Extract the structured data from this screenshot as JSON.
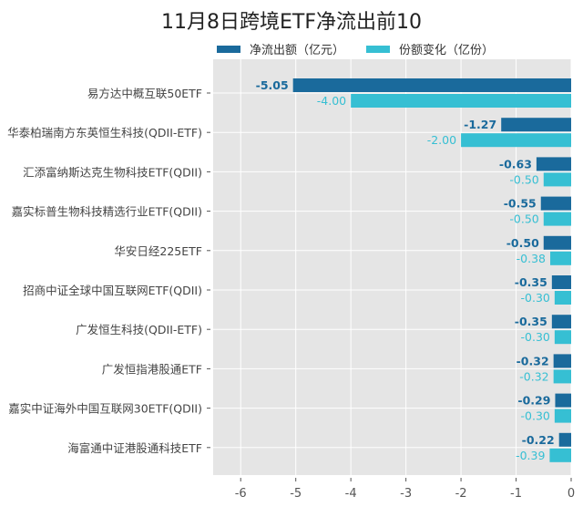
{
  "chart_data": {
    "type": "bar",
    "orientation": "horizontal",
    "title": "11月8日跨境ETF净流出前10",
    "categories": [
      "易方达中概互联50ETF",
      "华泰柏瑞南方东英恒生科技(QDII-ETF)",
      "汇添富纳斯达克生物科技ETF(QDII)",
      "嘉实标普生物科技精选行业ETF(QDII)",
      "华安日经225ETF",
      "招商中证全球中国互联网ETF(QDII)",
      "广发恒生科技(QDII-ETF)",
      "广发恒指港股通ETF",
      "嘉实中证海外中国互联网30ETF(QDII)",
      "海富通中证港股通科技ETF"
    ],
    "series": [
      {
        "name": "净流出额（亿元）",
        "color": "#1a6a9c",
        "values": [
          -5.05,
          -1.27,
          -0.63,
          -0.55,
          -0.5,
          -0.35,
          -0.35,
          -0.32,
          -0.29,
          -0.22
        ]
      },
      {
        "name": "份额变化（亿份）",
        "color": "#36bfd3",
        "values": [
          -4.0,
          -2.0,
          -0.5,
          -0.5,
          -0.38,
          -0.3,
          -0.3,
          -0.32,
          -0.3,
          -0.39
        ]
      }
    ],
    "xlim": [
      -6.5,
      0
    ],
    "xticks": [
      -6,
      -5,
      -4,
      -3,
      -2,
      -1,
      0
    ],
    "grid": true,
    "legend_position": "top"
  }
}
